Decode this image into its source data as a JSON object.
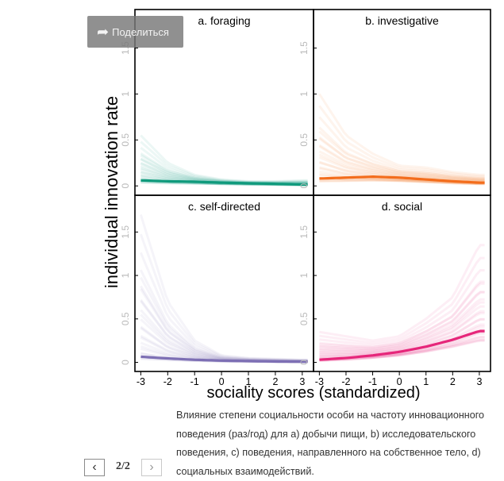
{
  "share": {
    "label": "Поделиться",
    "icon": "share-arrow-icon"
  },
  "caption": {
    "lines": [
      "Влияние степени социальности особи на частоту инновационного",
      "поведения (раз/год) для а) добычи пищи, b) исследовательского",
      "поведения, с) поведения, направленного на собственное тело, d)",
      "социальных взаимодействий."
    ]
  },
  "pager": {
    "current": "2/2",
    "prev_icon": "chevron-left-icon",
    "next_icon": "chevron-right-icon"
  },
  "chart_data": {
    "type": "line",
    "ylabel": "individual innovation rate",
    "xlabel": "sociality scores (standardized)",
    "xlim": [
      -3.1,
      3.3
    ],
    "ylim": [
      -0.05,
      1.85
    ],
    "x_ticks": [
      -3,
      -2,
      -1,
      0,
      1,
      2,
      3
    ],
    "y_ticks": [
      0,
      0.5,
      1,
      1.5
    ],
    "y_tick_labels": [
      "0",
      "0.5",
      "1",
      "1.5"
    ],
    "grid": false,
    "panels": [
      {
        "title": "a. foraging",
        "color": "#0f9a7c",
        "x": [
          -3,
          -2,
          -1,
          0,
          1,
          2,
          3
        ],
        "mean": [
          0.06,
          0.05,
          0.045,
          0.035,
          0.028,
          0.022,
          0.015
        ],
        "band_upper": [
          0.55,
          0.25,
          0.12,
          0.07,
          0.05,
          0.05,
          0.06
        ],
        "band_lower": [
          0.0,
          0.0,
          0.0,
          0.0,
          0.0,
          0.0,
          0.0
        ]
      },
      {
        "title": "b. investigative",
        "color": "#f36d1c",
        "x": [
          -3,
          -2,
          -1,
          0,
          1,
          2,
          3
        ],
        "mean": [
          0.08,
          0.09,
          0.1,
          0.09,
          0.07,
          0.05,
          0.035
        ],
        "band_upper": [
          1.0,
          0.55,
          0.35,
          0.22,
          0.2,
          0.15,
          0.12
        ],
        "band_lower": [
          0.0,
          0.0,
          0.0,
          0.0,
          0.0,
          0.0,
          0.0
        ]
      },
      {
        "title": "c. self-directed",
        "color": "#7d6fb4",
        "x": [
          -3,
          -2,
          -1,
          0,
          1,
          2,
          3
        ],
        "mean": [
          0.065,
          0.045,
          0.03,
          0.02,
          0.015,
          0.01,
          0.008
        ],
        "band_upper": [
          1.7,
          0.7,
          0.25,
          0.08,
          0.05,
          0.04,
          0.03
        ],
        "band_lower": [
          0.0,
          0.0,
          0.0,
          0.0,
          0.0,
          0.0,
          0.0
        ]
      },
      {
        "title": "d. social",
        "color": "#e6267a",
        "x": [
          -3,
          -2,
          -1,
          0,
          1,
          2,
          3
        ],
        "mean": [
          0.03,
          0.05,
          0.08,
          0.12,
          0.18,
          0.26,
          0.36
        ],
        "band_upper": [
          0.35,
          0.3,
          0.25,
          0.3,
          0.5,
          0.75,
          1.35
        ],
        "band_lower": [
          0.0,
          0.0,
          0.01,
          0.02,
          0.04,
          0.06,
          0.08
        ]
      }
    ]
  }
}
